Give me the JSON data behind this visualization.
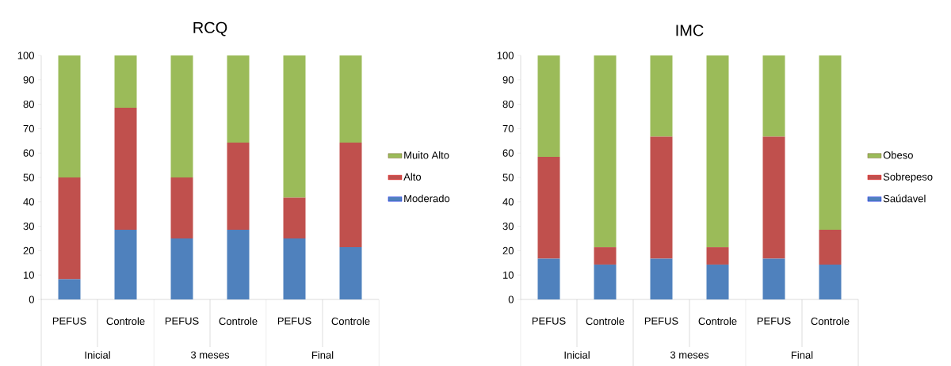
{
  "chart_data": [
    {
      "type": "bar",
      "stacked": true,
      "title": "RCQ",
      "categories": [
        "PEFUS",
        "Controle",
        "PEFUS",
        "Controle",
        "PEFUS",
        "Controle"
      ],
      "series": [
        {
          "name": "Moderado",
          "color": "#4f81bd",
          "values": [
            8.3,
            28.6,
            25,
            28.6,
            25,
            21.4
          ]
        },
        {
          "name": "Alto",
          "color": "#c0504d",
          "values": [
            41.7,
            50,
            25,
            35.7,
            16.7,
            42.9
          ]
        },
        {
          "name": "Muito Alto",
          "color": "#9bbb59",
          "values": [
            50,
            21.4,
            50,
            35.7,
            58.3,
            35.7
          ]
        }
      ],
      "ylim": [
        0,
        100
      ],
      "yticks": [
        0,
        10,
        20,
        30,
        40,
        50,
        60,
        70,
        80,
        90,
        100
      ],
      "legend": "right",
      "grid": false,
      "annotations": [
        "Inicial",
        "3 meses",
        "Final"
      ]
    },
    {
      "type": "bar",
      "stacked": true,
      "title": "IMC",
      "categories": [
        "PEFUS",
        "Controle",
        "PEFUS",
        "Controle",
        "PEFUS",
        "Controle"
      ],
      "series": [
        {
          "name": "Saúdavel",
          "color": "#4f81bd",
          "values": [
            16.7,
            14.3,
            16.7,
            14.3,
            16.7,
            14.3
          ]
        },
        {
          "name": "Sobrepeso",
          "color": "#c0504d",
          "values": [
            41.7,
            7.1,
            50,
            7.1,
            50,
            14.3
          ]
        },
        {
          "name": "Obeso",
          "color": "#9bbb59",
          "values": [
            41.6,
            78.6,
            33.3,
            78.6,
            33.3,
            71.4
          ]
        }
      ],
      "ylim": [
        0,
        100
      ],
      "yticks": [
        0,
        10,
        20,
        30,
        40,
        50,
        60,
        70,
        80,
        90,
        100
      ],
      "legend": "right",
      "grid": false,
      "annotations": [
        "Inicial",
        "3 meses",
        "Final"
      ]
    }
  ]
}
